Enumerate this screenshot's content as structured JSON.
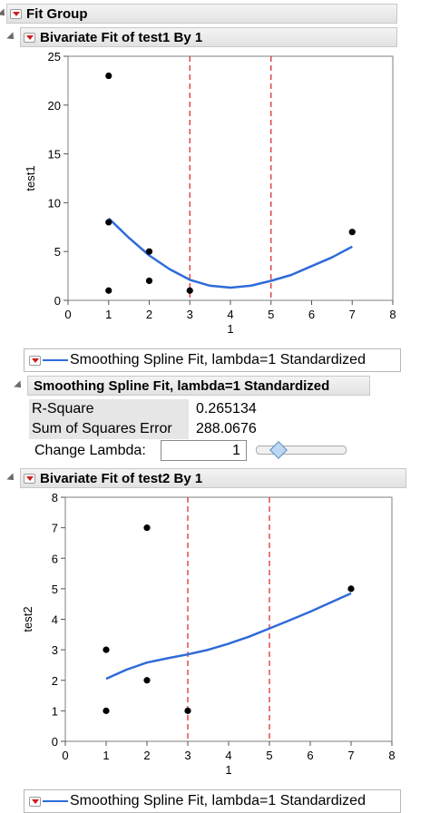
{
  "fit_group": {
    "title": "Fit Group"
  },
  "reports": [
    {
      "title": "Bivariate Fit of test1 By 1",
      "legend": "Smoothing Spline Fit, lambda=1 Standardized"
    },
    {
      "title": "Bivariate Fit of test2 By 1",
      "legend": "Smoothing Spline Fit, lambda=1 Standardized"
    }
  ],
  "fit_table": {
    "title": "Smoothing Spline Fit, lambda=1 Standardized",
    "rows": [
      {
        "label": "R-Square",
        "value": "0.265134"
      },
      {
        "label": "Sum of Squares Error",
        "value": "288.0676"
      }
    ],
    "change_lambda_label": "Change Lambda:",
    "lambda_value": "1",
    "lambda_slider_fraction": 0.25
  },
  "colors": {
    "points": "#000000",
    "spline": "#2f6bd8",
    "ref_lines": "#e03030",
    "frame": "#7f7f7f"
  },
  "chart_data": [
    {
      "type": "scatter",
      "xlabel": "1",
      "ylabel": "test1",
      "xlim": [
        0,
        8
      ],
      "ylim": [
        0,
        25
      ],
      "xticks": [
        0,
        1,
        2,
        3,
        4,
        5,
        6,
        7,
        8
      ],
      "yticks": [
        0,
        5,
        10,
        15,
        20,
        25
      ],
      "points": [
        [
          1,
          23
        ],
        [
          1,
          8
        ],
        [
          1,
          1
        ],
        [
          2,
          5
        ],
        [
          2,
          2
        ],
        [
          3,
          1
        ],
        [
          7,
          7
        ]
      ],
      "reference_lines_x": [
        3,
        5
      ],
      "spline": {
        "name": "Smoothing Spline Fit, lambda=1 Standardized",
        "x": [
          1,
          1.5,
          2,
          2.5,
          3,
          3.5,
          4,
          4.5,
          5,
          5.5,
          6,
          6.5,
          7
        ],
        "y": [
          8.4,
          6.4,
          4.6,
          3.2,
          2.1,
          1.5,
          1.3,
          1.5,
          2.0,
          2.6,
          3.5,
          4.4,
          5.5
        ]
      }
    },
    {
      "type": "scatter",
      "xlabel": "1",
      "ylabel": "test2",
      "xlim": [
        0,
        8
      ],
      "ylim": [
        0,
        8
      ],
      "xticks": [
        0,
        1,
        2,
        3,
        4,
        5,
        6,
        7,
        8
      ],
      "yticks": [
        0,
        1,
        2,
        3,
        4,
        5,
        6,
        7,
        8
      ],
      "points": [
        [
          1,
          3
        ],
        [
          1,
          1
        ],
        [
          2,
          7
        ],
        [
          2,
          2
        ],
        [
          3,
          1
        ],
        [
          7,
          5
        ]
      ],
      "reference_lines_x": [
        3,
        5
      ],
      "spline": {
        "name": "Smoothing Spline Fit, lambda=1 Standardized",
        "x": [
          1,
          1.5,
          2,
          2.5,
          3,
          3.5,
          4,
          4.5,
          5,
          5.5,
          6,
          6.5,
          7
        ],
        "y": [
          2.05,
          2.35,
          2.58,
          2.72,
          2.85,
          3.0,
          3.2,
          3.43,
          3.7,
          3.97,
          4.25,
          4.55,
          4.85
        ]
      }
    }
  ]
}
